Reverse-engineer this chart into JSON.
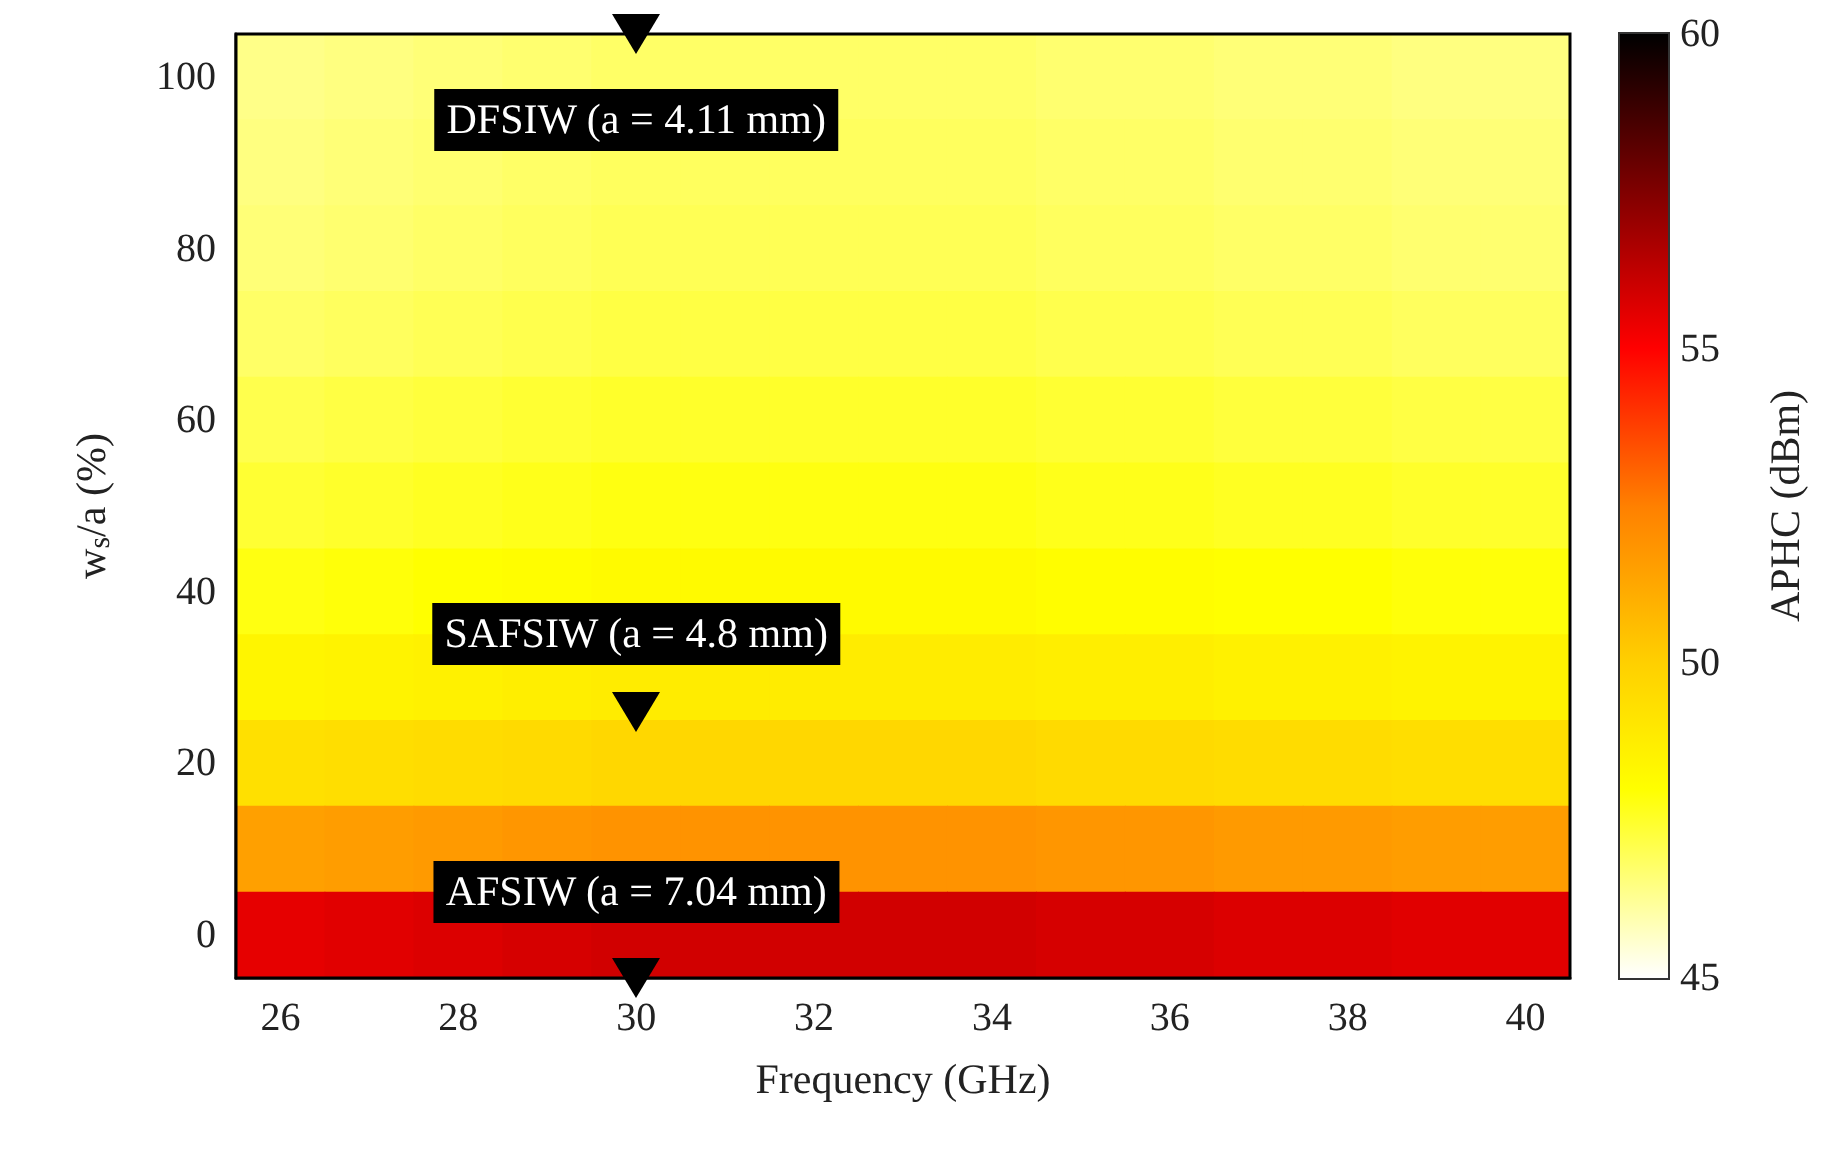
{
  "chart_data": {
    "type": "heatmap",
    "xlabel": "Frequency (GHz)",
    "ylabel": "w$_{s}$/a (%)",
    "clabel": "APHC (dBm)",
    "categories": [
      "26",
      null,
      "28",
      null,
      "30",
      null,
      "32",
      null,
      "34",
      null,
      "36",
      null,
      "38",
      null,
      "40"
    ],
    "y_categories": [
      "100",
      null,
      "80",
      null,
      "60",
      null,
      "40",
      null,
      "20",
      null,
      "0"
    ],
    "cells": [
      [
        46.4,
        46.5,
        46.6,
        46.7,
        46.8,
        46.8,
        46.8,
        46.8,
        46.8,
        46.7,
        46.7,
        46.6,
        46.6,
        46.5,
        46.5
      ],
      [
        46.5,
        46.6,
        46.7,
        46.8,
        46.9,
        46.9,
        46.9,
        46.9,
        46.9,
        46.8,
        46.8,
        46.7,
        46.7,
        46.6,
        46.6
      ],
      [
        46.6,
        46.7,
        46.8,
        46.9,
        47.0,
        47.0,
        47.0,
        47.0,
        47.0,
        46.9,
        46.9,
        46.8,
        46.8,
        46.7,
        46.7
      ],
      [
        46.8,
        46.9,
        47.0,
        47.1,
        47.2,
        47.2,
        47.2,
        47.2,
        47.2,
        47.1,
        47.1,
        47.0,
        47.0,
        46.9,
        46.9
      ],
      [
        47.1,
        47.2,
        47.3,
        47.4,
        47.5,
        47.5,
        47.5,
        47.5,
        47.5,
        47.4,
        47.4,
        47.3,
        47.3,
        47.2,
        47.2
      ],
      [
        47.4,
        47.5,
        47.6,
        47.7,
        47.8,
        47.8,
        47.8,
        47.8,
        47.8,
        47.7,
        47.7,
        47.6,
        47.6,
        47.5,
        47.5
      ],
      [
        47.8,
        47.9,
        48.0,
        48.1,
        48.2,
        48.2,
        48.2,
        48.2,
        48.2,
        48.1,
        48.1,
        48.0,
        48.0,
        47.9,
        47.9
      ],
      [
        48.4,
        48.5,
        48.6,
        48.7,
        48.8,
        48.8,
        48.8,
        48.8,
        48.8,
        48.7,
        48.7,
        48.6,
        48.6,
        48.5,
        48.5
      ],
      [
        49.3,
        49.4,
        49.5,
        49.6,
        49.7,
        49.7,
        49.7,
        49.7,
        49.7,
        49.6,
        49.6,
        49.5,
        49.5,
        49.4,
        49.4
      ],
      [
        51.5,
        51.6,
        51.7,
        51.8,
        51.9,
        51.9,
        51.9,
        51.9,
        51.9,
        51.8,
        51.8,
        51.7,
        51.7,
        51.6,
        51.6
      ],
      [
        55.5,
        55.6,
        55.7,
        55.8,
        55.9,
        55.9,
        55.9,
        55.9,
        55.9,
        55.8,
        55.8,
        55.7,
        55.7,
        55.6,
        55.6
      ]
    ],
    "clim": [
      45,
      60
    ],
    "cticks": [
      45,
      50,
      55,
      60
    ],
    "annotations": [
      "DFSIW (a = 4.11 mm)",
      "SAFSIW (a = 4.8 mm)",
      "AFSIW (a = 7.04 mm)"
    ]
  }
}
